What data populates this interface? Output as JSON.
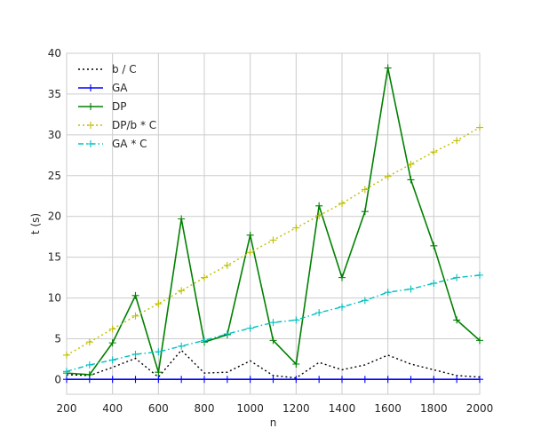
{
  "chart_data": {
    "type": "line",
    "title": "",
    "xlabel": "n",
    "ylabel": "t (s)",
    "xlim": [
      200,
      2000
    ],
    "ylim": [
      -1.8,
      40
    ],
    "x_ticks": [
      200,
      400,
      600,
      800,
      1000,
      1200,
      1400,
      1600,
      1800,
      2000
    ],
    "y_ticks": [
      0,
      5,
      10,
      15,
      20,
      25,
      30,
      35,
      40
    ],
    "grid": true,
    "legend_position": "top-left",
    "x": [
      200,
      300,
      400,
      500,
      600,
      700,
      800,
      900,
      1000,
      1100,
      1200,
      1300,
      1400,
      1500,
      1600,
      1700,
      1800,
      1900,
      2000
    ],
    "series": [
      {
        "name": "b / C",
        "color": "#000000",
        "style": "dotted",
        "marker": "none",
        "values": [
          0.6,
          0.5,
          1.5,
          2.6,
          0.3,
          3.6,
          0.8,
          0.9,
          2.3,
          0.5,
          0.2,
          2.1,
          1.2,
          1.8,
          3.0,
          1.9,
          1.2,
          0.5,
          0.3
        ]
      },
      {
        "name": "GA",
        "color": "#0000ff",
        "style": "solid",
        "marker": "plus",
        "values": [
          0.03,
          0.03,
          0.03,
          0.03,
          0.03,
          0.03,
          0.03,
          0.03,
          0.03,
          0.03,
          0.03,
          0.03,
          0.03,
          0.03,
          0.03,
          0.03,
          0.03,
          0.03,
          0.03
        ]
      },
      {
        "name": "DP",
        "color": "#008000",
        "style": "solid",
        "marker": "plus",
        "values": [
          0.8,
          0.6,
          4.5,
          10.3,
          0.9,
          19.7,
          4.6,
          5.5,
          17.7,
          4.8,
          1.9,
          21.3,
          12.5,
          20.6,
          38.2,
          24.5,
          16.4,
          7.3,
          4.8
        ]
      },
      {
        "name": "DP/b * C",
        "color": "#bfbf00",
        "style": "dotted",
        "marker": "plus",
        "values": [
          3.0,
          4.6,
          6.2,
          7.8,
          9.3,
          10.9,
          12.5,
          14.0,
          15.6,
          17.1,
          18.6,
          20.1,
          21.6,
          23.3,
          24.9,
          26.4,
          27.9,
          29.3,
          30.9
        ]
      },
      {
        "name": "GA * C",
        "color": "#00bfbf",
        "style": "dashdot",
        "marker": "plus",
        "values": [
          1.0,
          1.8,
          2.4,
          3.1,
          3.4,
          4.1,
          4.8,
          5.6,
          6.3,
          7.0,
          7.3,
          8.2,
          8.9,
          9.7,
          10.7,
          11.1,
          11.8,
          12.5,
          12.8
        ]
      }
    ]
  }
}
